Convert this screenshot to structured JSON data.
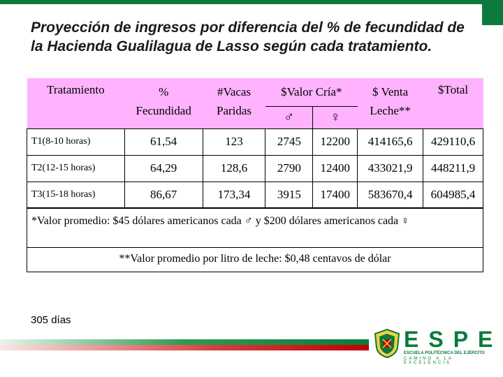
{
  "title": "Proyección de ingresos por diferencia del % de fecundidad de la Hacienda Gualilagua de Lasso según cada tratamiento.",
  "table": {
    "headers": {
      "tratamiento": "Tratamiento",
      "fecundidad_line1": "%",
      "fecundidad_line2": "Fecundidad",
      "vacas_line1": "#Vacas",
      "vacas_line2": "Paridas",
      "valor_cria": "$Valor Cría*",
      "male_symbol": "♂",
      "female_symbol": "♀",
      "venta_line1": "$ Venta",
      "venta_line2": "Leche**",
      "total": "$Total"
    },
    "rows": [
      {
        "tratamiento": "T1(8-10 horas)",
        "fecundidad": "61,54",
        "vacas": "123",
        "macho": "2745",
        "hembra": "12200",
        "venta": "414165,6",
        "total": "429110,6"
      },
      {
        "tratamiento": "T2(12-15 horas)",
        "fecundidad": "64,29",
        "vacas": "128,6",
        "macho": "2790",
        "hembra": "12400",
        "venta": "433021,9",
        "total": "448211,9"
      },
      {
        "tratamiento": "T3(15-18 horas)",
        "fecundidad": "86,67",
        "vacas": "173,34",
        "macho": "3915",
        "hembra": "17400",
        "venta": "583670,4",
        "total": "604985,4"
      }
    ]
  },
  "notes": {
    "note1": "*Valor promedio: $45 dólares americanos cada ♂ y $200 dólares americanos cada ♀",
    "note2": "**Valor promedio por litro de leche: $0,48 centavos de dólar"
  },
  "footer_days": "305 días",
  "logo": {
    "brand": "ESPE",
    "subtitle": "ESCUELA POLITÉCNICA DEL EJÉRCITO",
    "motto": "CAMINO A LA EXCELENCIA"
  },
  "colors": {
    "header_fill": "#ffb3ff",
    "brand_green": "#0b7a3c",
    "band_red": "#c00000"
  }
}
